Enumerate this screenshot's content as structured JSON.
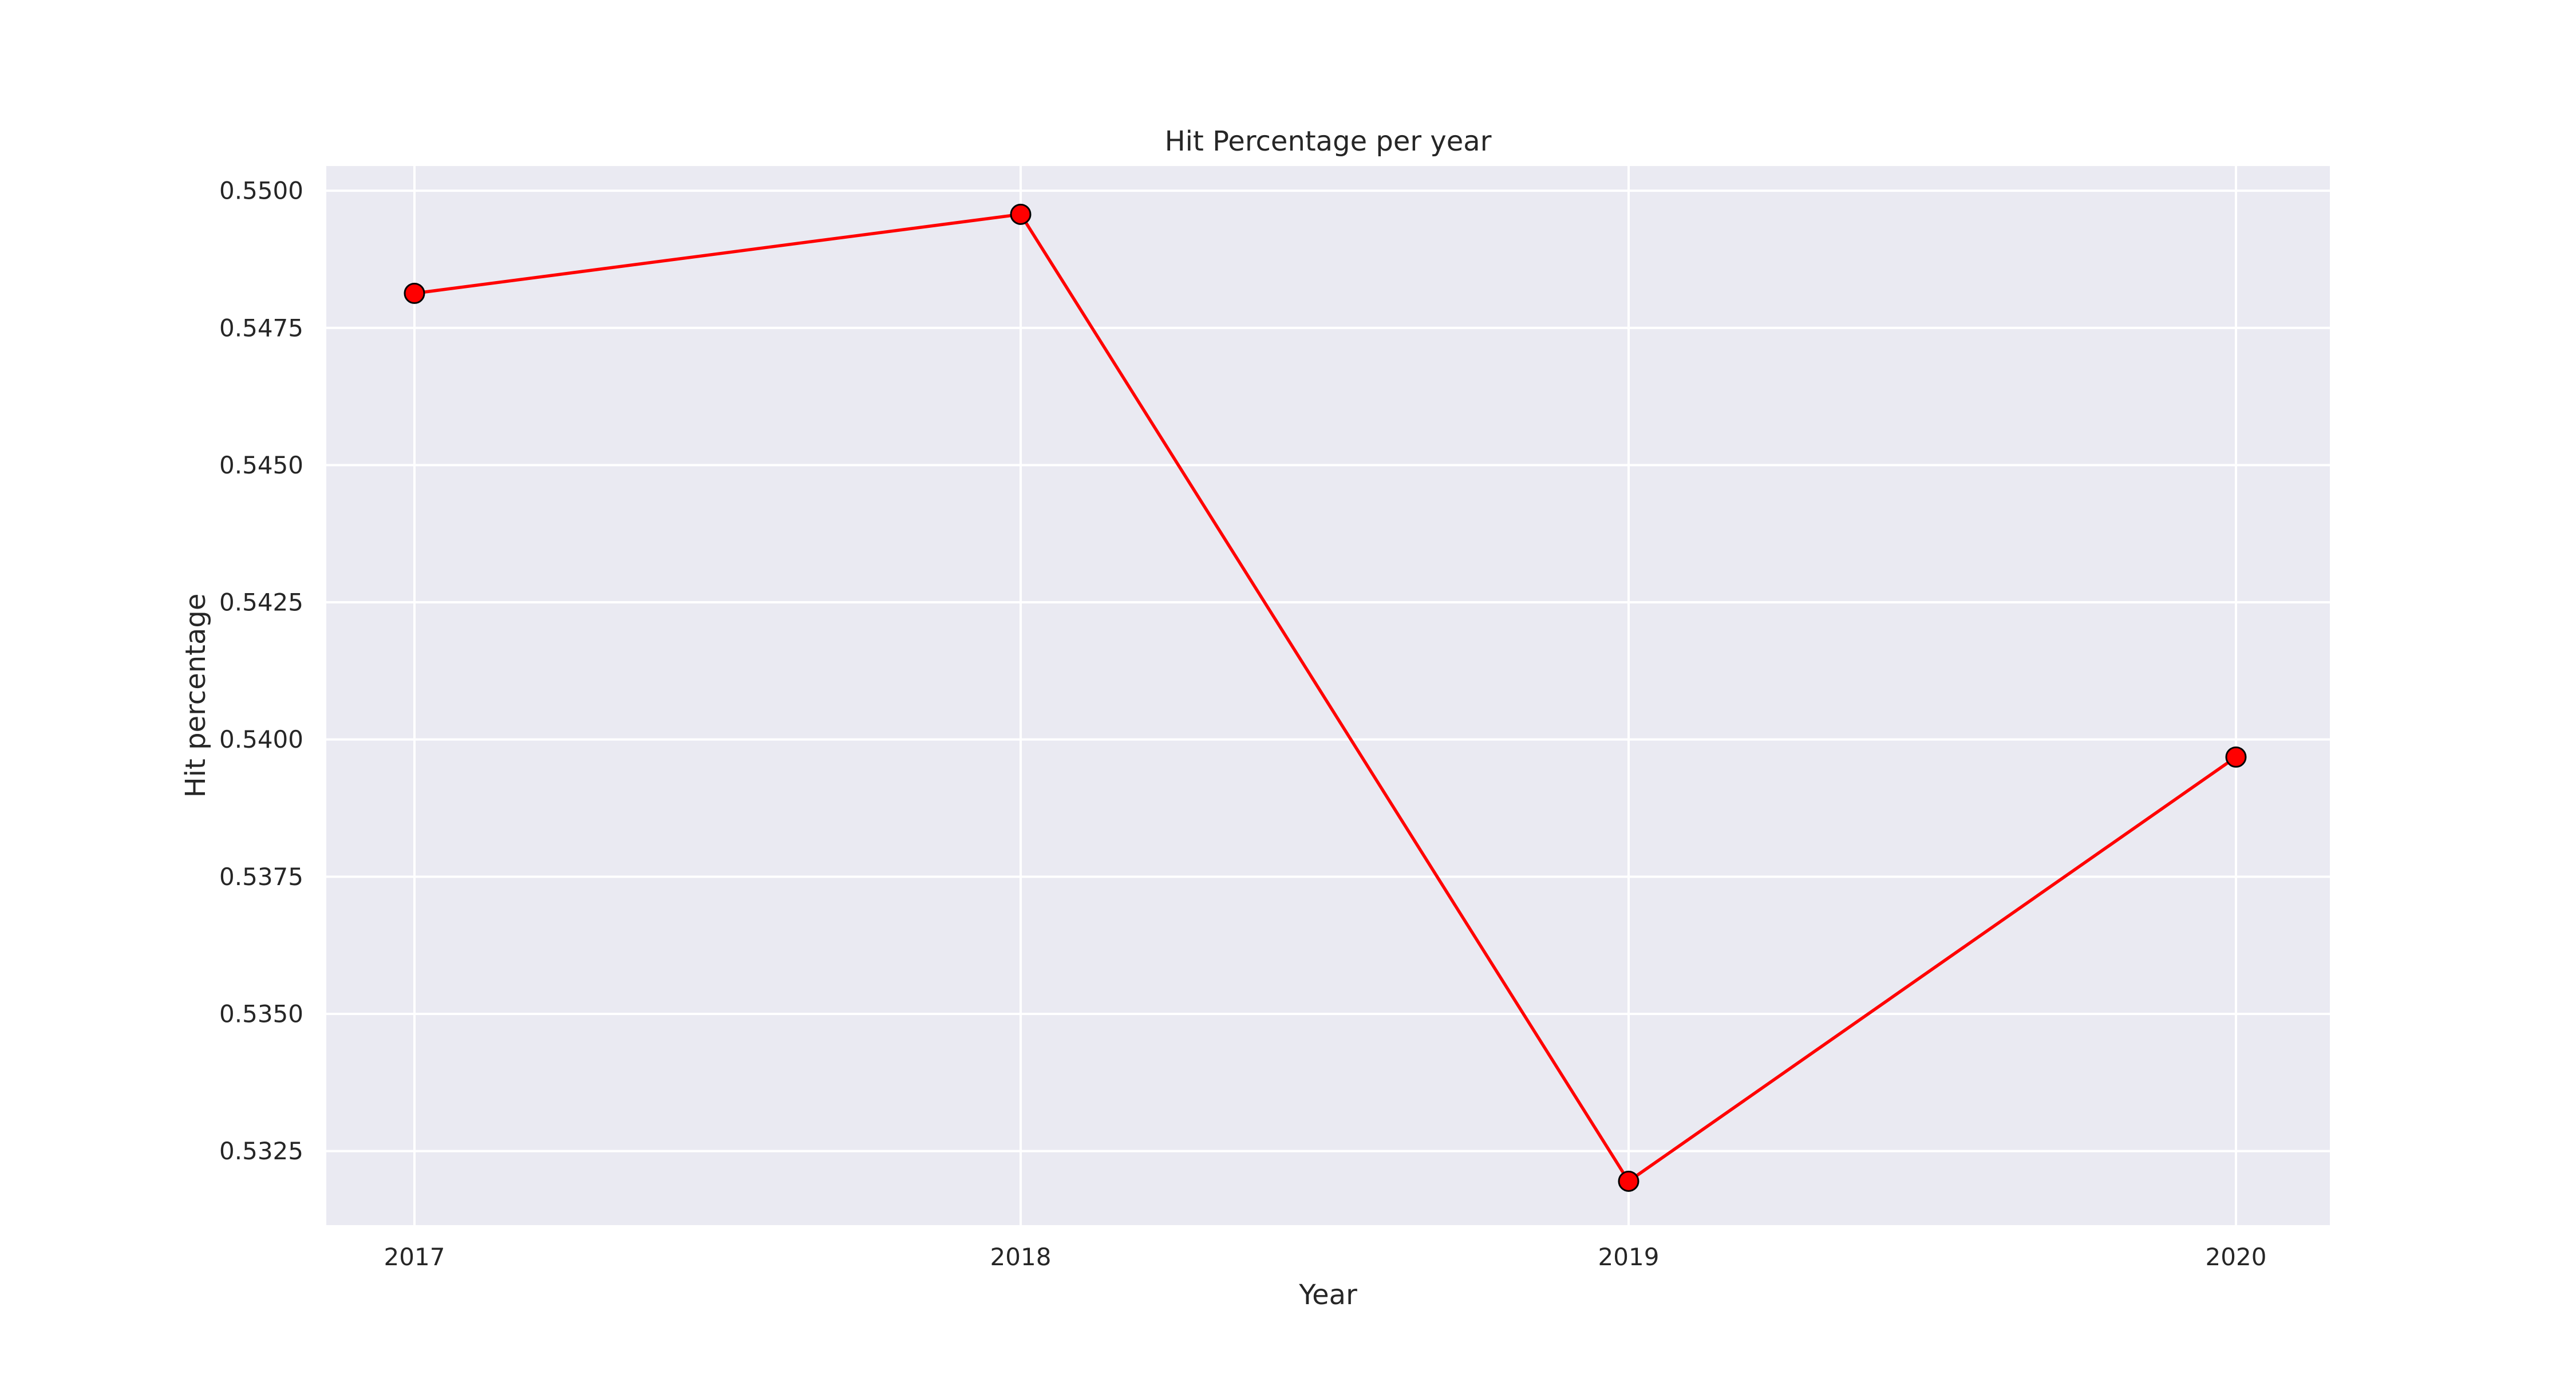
{
  "chart_data": {
    "type": "line",
    "title": "Hit Percentage per year",
    "xlabel": "Year",
    "ylabel": "Hit percentage",
    "x": [
      "2017",
      "2018",
      "2019",
      "2020"
    ],
    "series": [
      {
        "values": [
          0.54813,
          0.54957,
          0.53195,
          0.53968
        ],
        "color": "#ff0000",
        "marker": "circle",
        "marker_edge_color": "#000000"
      }
    ],
    "y_ticks": [
      "0.5325",
      "0.5350",
      "0.5375",
      "0.5400",
      "0.5425",
      "0.5450",
      "0.5475",
      "0.5500"
    ],
    "ylim": [
      0.53115,
      0.55045
    ],
    "grid": true,
    "background": "#eaeaf2",
    "grid_color": "#ffffff"
  }
}
